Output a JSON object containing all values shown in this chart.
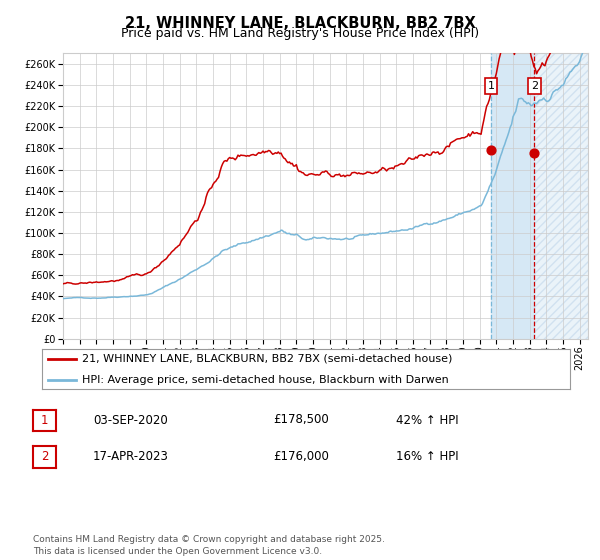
{
  "title": "21, WHINNEY LANE, BLACKBURN, BB2 7BX",
  "subtitle": "Price paid vs. HM Land Registry's House Price Index (HPI)",
  "ylim": [
    0,
    270000
  ],
  "yticks": [
    0,
    20000,
    40000,
    60000,
    80000,
    100000,
    120000,
    140000,
    160000,
    180000,
    200000,
    220000,
    240000,
    260000
  ],
  "hpi_color": "#7ab8d9",
  "price_color": "#cc0000",
  "dot_color": "#cc0000",
  "bg_color": "#ffffff",
  "grid_color": "#cccccc",
  "shade_color": "#d6e8f5",
  "vline1_color": "#7ab8d9",
  "vline2_color": "#cc0000",
  "marker1_year": 2020.67,
  "marker1_price": 178500,
  "marker2_year": 2023.29,
  "marker2_price": 176000,
  "legend_label_price": "21, WHINNEY LANE, BLACKBURN, BB2 7BX (semi-detached house)",
  "legend_label_hpi": "HPI: Average price, semi-detached house, Blackburn with Darwen",
  "table_rows": [
    {
      "num": "1",
      "date": "03-SEP-2020",
      "price": "£178,500",
      "pct": "42% ↑ HPI"
    },
    {
      "num": "2",
      "date": "17-APR-2023",
      "price": "£176,000",
      "pct": "16% ↑ HPI"
    }
  ],
  "footer": "Contains HM Land Registry data © Crown copyright and database right 2025.\nThis data is licensed under the Open Government Licence v3.0.",
  "title_fontsize": 10.5,
  "subtitle_fontsize": 9,
  "tick_fontsize": 7,
  "legend_fontsize": 8,
  "table_fontsize": 8.5,
  "footer_fontsize": 6.5
}
